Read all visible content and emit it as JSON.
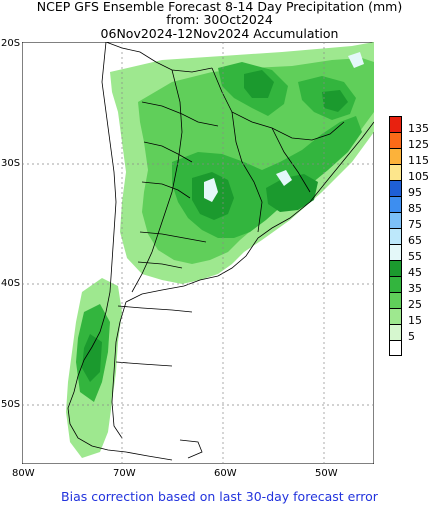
{
  "title": {
    "line1": "NCEP GFS Ensemble Forecast 8-14 Day Precipitation (mm)",
    "line2": "from: 30Oct2024",
    "line3": "06Nov2024-12Nov2024 Accumulation"
  },
  "axes": {
    "lat_labels": [
      "20S",
      "30S",
      "40S",
      "50S"
    ],
    "lon_labels": [
      "80W",
      "70W",
      "60W",
      "50W"
    ]
  },
  "legend": {
    "items": [
      {
        "label": "135",
        "color": "#e8210f"
      },
      {
        "label": "125",
        "color": "#fb6a18"
      },
      {
        "label": "115",
        "color": "#fcb23a"
      },
      {
        "label": "105",
        "color": "#fde68c"
      },
      {
        "label": "95",
        "color": "#1e5fd6"
      },
      {
        "label": "85",
        "color": "#3d8ef0"
      },
      {
        "label": "75",
        "color": "#7cc0f7"
      },
      {
        "label": "65",
        "color": "#bde8fb"
      },
      {
        "label": "55",
        "color": "#e4f8f9"
      },
      {
        "label": "45",
        "color": "#1b9a2e"
      },
      {
        "label": "35",
        "color": "#33b53e"
      },
      {
        "label": "25",
        "color": "#60cf5a"
      },
      {
        "label": "15",
        "color": "#9ee88f"
      },
      {
        "label": "5",
        "color": "#d6f7cf"
      },
      {
        "label": "",
        "color": "#ffffff"
      }
    ]
  },
  "footer": "Bias correction based on last 30-day forecast error"
}
